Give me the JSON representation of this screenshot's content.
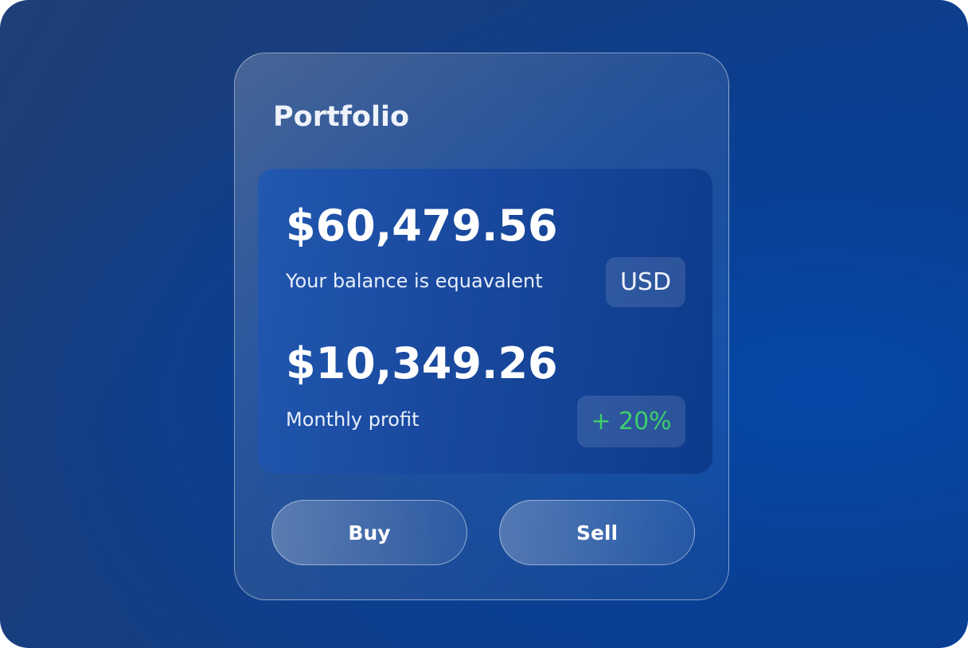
{
  "portfolio": {
    "title": "Portfolio",
    "balance": {
      "amount": "$60,479.56",
      "label": "Your balance is equavalent",
      "currency": "USD"
    },
    "profit": {
      "amount": "$10,349.26",
      "label": "Monthly profit",
      "change": "+ 20%",
      "change_color": "#3ecf6a"
    },
    "buttons": {
      "buy": "Buy",
      "sell": "Sell"
    }
  }
}
